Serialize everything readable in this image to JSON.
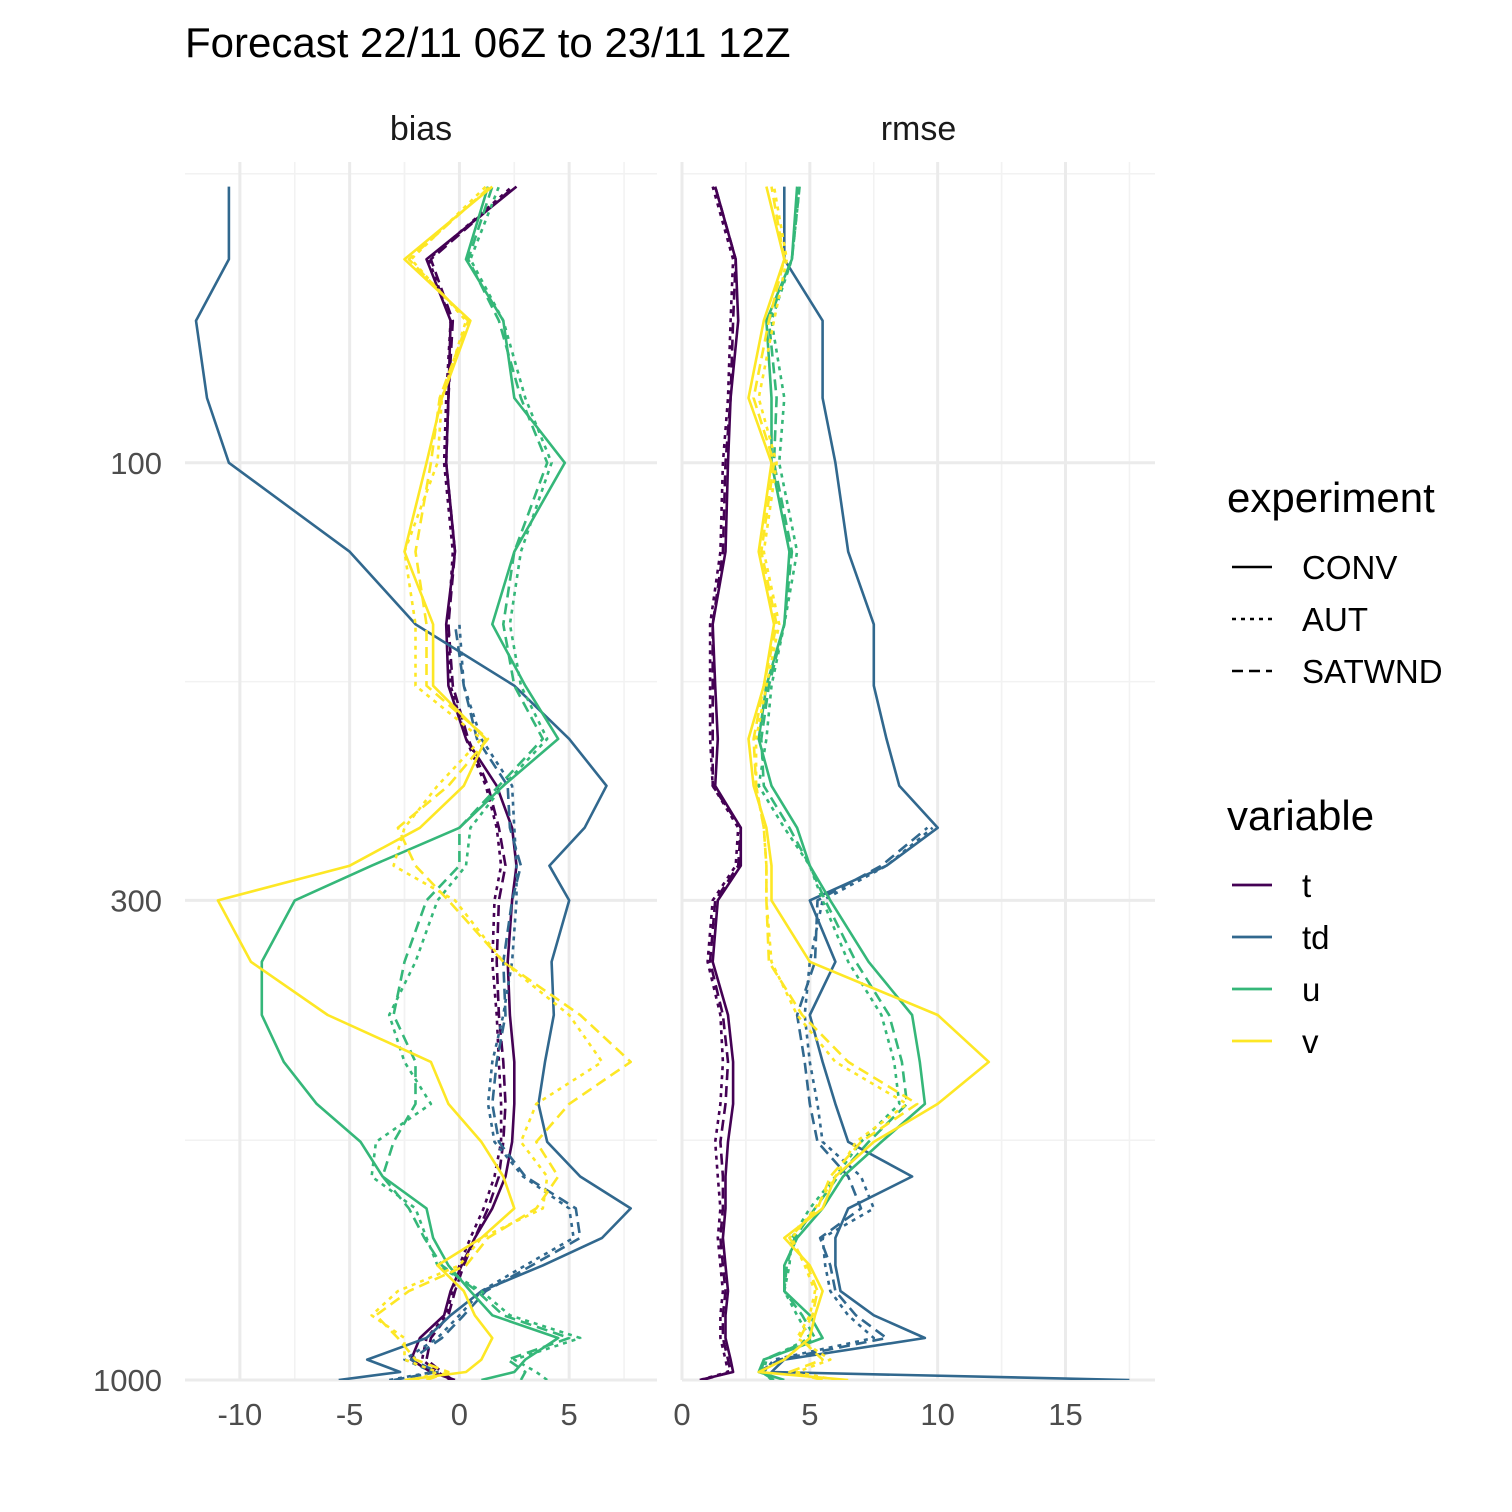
{
  "chart_data": {
    "type": "line",
    "title": "Forecast 22/11 06Z to 23/11 12Z",
    "facets": [
      {
        "name": "bias",
        "xlim": [
          -12.5,
          9
        ],
        "xticks": [
          -10,
          -5,
          0,
          5
        ],
        "xtick_labels": [
          "-10",
          "-5",
          "0",
          "5"
        ]
      },
      {
        "name": "rmse",
        "xlim": [
          0,
          18.5
        ],
        "xticks": [
          0,
          5,
          10,
          15
        ],
        "xtick_labels": [
          "0",
          "5",
          "10",
          "15"
        ]
      }
    ],
    "y_scale": "log",
    "y_reversed": true,
    "ylim": [
      1000,
      47
    ],
    "yticks": [
      100,
      300,
      1000
    ],
    "ytick_labels": [
      "100",
      "300",
      "1000"
    ],
    "legend_placement": "right",
    "grid": true,
    "legends": {
      "experiment": {
        "title": "experiment",
        "entries": [
          {
            "label": "CONV",
            "dash": "solid"
          },
          {
            "label": "AUT",
            "dash": "dotted"
          },
          {
            "label": "SATWND",
            "dash": "dashed"
          }
        ]
      },
      "variable": {
        "title": "variable",
        "entries": [
          {
            "label": "t",
            "color": "#440154"
          },
          {
            "label": "td",
            "color": "#31688e"
          },
          {
            "label": "u",
            "color": "#35b779"
          },
          {
            "label": "v",
            "color": "#fde725"
          }
        ]
      }
    },
    "pressure_levels": [
      1000,
      980,
      950,
      900,
      850,
      800,
      750,
      700,
      650,
      600,
      550,
      500,
      450,
      400,
      350,
      300,
      275,
      250,
      225,
      200,
      175,
      150,
      125,
      100,
      85,
      70,
      60,
      50
    ],
    "series": [
      {
        "facet": "bias",
        "variable": "t",
        "experiment": "CONV",
        "values": [
          -0.2,
          -1.3,
          -2.2,
          -1.8,
          -0.7,
          -0.4,
          0.1,
          0.7,
          1.5,
          2.1,
          2.4,
          2.5,
          2.5,
          2.3,
          2.2,
          2.4,
          2.6,
          2.4,
          1.7,
          0.3,
          -0.5,
          -0.6,
          -0.2,
          -0.6,
          -0.5,
          -0.4,
          -1.5,
          2.6
        ]
      },
      {
        "facet": "bias",
        "variable": "t",
        "experiment": "AUT",
        "values": [
          -0.4,
          -1.0,
          -1.7,
          -1.5,
          -0.6,
          -0.3,
          0.0,
          0.5,
          1.1,
          1.6,
          1.9,
          1.9,
          1.8,
          1.7,
          1.5,
          1.6,
          1.9,
          1.7,
          1.2,
          0.3,
          -0.4,
          -0.5,
          -0.3,
          -0.7,
          -0.6,
          -0.4,
          -1.4,
          2.4
        ]
      },
      {
        "facet": "bias",
        "variable": "t",
        "experiment": "SATWND",
        "values": [
          -0.3,
          -0.8,
          -1.5,
          -1.3,
          -0.5,
          -0.2,
          0.2,
          0.7,
          1.3,
          1.8,
          2.0,
          2.1,
          2.0,
          1.8,
          1.7,
          1.8,
          2.1,
          1.8,
          1.3,
          0.4,
          -0.3,
          -0.5,
          -0.2,
          -0.6,
          -0.5,
          -0.3,
          -1.3,
          2.5
        ]
      },
      {
        "facet": "bias",
        "variable": "td",
        "experiment": "CONV",
        "values": [
          -5.5,
          -2.7,
          -4.2,
          -1.5,
          -0.4,
          1.0,
          3.8,
          6.5,
          7.8,
          5.5,
          4.0,
          3.6,
          3.9,
          4.3,
          4.2,
          5.0,
          4.1,
          5.7,
          6.7,
          5.0,
          2.5,
          -2.0,
          -5.0,
          -10.5,
          -11.5,
          -12.0,
          -10.5,
          -10.5
        ]
      },
      {
        "facet": "bias",
        "variable": "td",
        "experiment": "AUT",
        "values": [
          -3.2,
          -1.2,
          -2.5,
          -1.0,
          0.0,
          1.0,
          3.0,
          5.2,
          5.0,
          2.9,
          1.6,
          1.3,
          1.5,
          2.0,
          2.4,
          2.6,
          2.6,
          2.5,
          2.4,
          1.0,
          0.2,
          0.0,
          null,
          null,
          null,
          null,
          null,
          null
        ]
      },
      {
        "facet": "bias",
        "variable": "td",
        "experiment": "SATWND",
        "values": [
          -3.0,
          -1.0,
          -2.2,
          -0.8,
          0.2,
          1.2,
          3.3,
          5.5,
          5.3,
          3.0,
          1.8,
          1.5,
          1.7,
          2.1,
          2.0,
          2.4,
          2.8,
          2.3,
          2.2,
          0.8,
          0.2,
          -0.2,
          null,
          null,
          null,
          null,
          null,
          null
        ]
      },
      {
        "facet": "bias",
        "variable": "u",
        "experiment": "CONV",
        "values": [
          1.0,
          2.5,
          3.0,
          4.5,
          1.5,
          0.5,
          -0.5,
          -1.2,
          -1.5,
          -3.5,
          -4.5,
          -6.5,
          -8.0,
          -9.0,
          -9.0,
          -7.5,
          -4.0,
          0.0,
          2.0,
          4.5,
          3.0,
          1.5,
          2.5,
          4.8,
          2.5,
          2.0,
          0.3,
          1.3
        ]
      },
      {
        "facet": "bias",
        "variable": "u",
        "experiment": "AUT",
        "values": [
          4.0,
          3.5,
          2.5,
          5.5,
          2.3,
          1.0,
          -1.0,
          -1.5,
          -2.0,
          -4.0,
          -3.8,
          -1.3,
          -2.5,
          -3.2,
          -2.0,
          -1.0,
          0.3,
          0.5,
          2.0,
          4.0,
          2.8,
          2.3,
          2.8,
          4.2,
          3.0,
          2.0,
          0.5,
          1.8
        ]
      },
      {
        "facet": "bias",
        "variable": "u",
        "experiment": "SATWND",
        "values": [
          2.8,
          3.0,
          2.2,
          5.0,
          2.0,
          0.8,
          -0.8,
          -1.6,
          -2.3,
          -3.5,
          -3.0,
          -2.0,
          -2.0,
          -3.0,
          -2.5,
          -1.5,
          0.0,
          0.0,
          1.8,
          3.8,
          2.5,
          2.0,
          2.5,
          4.0,
          2.8,
          1.8,
          0.4,
          1.5
        ]
      },
      {
        "facet": "bias",
        "variable": "v",
        "experiment": "CONV",
        "values": [
          -2.5,
          0.3,
          1.0,
          1.5,
          0.7,
          0.2,
          -1.0,
          1.0,
          2.5,
          2.0,
          1.0,
          -0.5,
          -1.3,
          -6.0,
          -9.5,
          -11.0,
          -5.0,
          -1.8,
          0.2,
          1.2,
          -1.2,
          -1.2,
          -2.5,
          -1.5,
          -0.8,
          0.5,
          -2.5,
          1.5
        ]
      },
      {
        "facet": "bias",
        "variable": "v",
        "experiment": "AUT",
        "values": [
          -2.0,
          -1.0,
          -2.5,
          -2.5,
          -4.0,
          -2.8,
          0.0,
          1.0,
          3.8,
          4.0,
          2.8,
          3.5,
          6.5,
          5.0,
          2.0,
          -0.2,
          -3.0,
          -2.5,
          -1.0,
          1.0,
          -2.0,
          -2.0,
          -2.5,
          -1.0,
          -0.8,
          0.3,
          -2.2,
          1.2
        ]
      },
      {
        "facet": "bias",
        "variable": "v",
        "experiment": "SATWND",
        "values": [
          -1.5,
          -0.5,
          -2.0,
          -2.8,
          -3.8,
          -2.3,
          0.3,
          1.3,
          3.5,
          4.5,
          3.5,
          5.0,
          7.8,
          5.5,
          2.0,
          -0.5,
          -2.0,
          -2.8,
          -0.5,
          1.3,
          -1.5,
          -1.5,
          -2.0,
          -1.3,
          -0.9,
          0.4,
          -2.3,
          1.4
        ]
      },
      {
        "facet": "rmse",
        "variable": "t",
        "experiment": "CONV",
        "values": [
          0.7,
          2.0,
          1.9,
          1.7,
          1.7,
          1.8,
          1.7,
          1.6,
          1.7,
          1.7,
          1.8,
          2.0,
          2.0,
          1.8,
          1.2,
          1.4,
          2.3,
          2.3,
          1.3,
          1.4,
          1.3,
          1.2,
          1.7,
          1.8,
          1.9,
          2.2,
          2.1,
          1.3
        ]
      },
      {
        "facet": "rmse",
        "variable": "t",
        "experiment": "AUT",
        "values": [
          0.7,
          1.8,
          1.7,
          1.5,
          1.5,
          1.6,
          1.5,
          1.4,
          1.5,
          1.4,
          1.3,
          1.5,
          1.6,
          1.5,
          1.0,
          1.2,
          2.1,
          2.2,
          1.2,
          1.1,
          1.1,
          1.1,
          1.5,
          1.6,
          1.8,
          1.9,
          2.0,
          1.2
        ]
      },
      {
        "facet": "rmse",
        "variable": "t",
        "experiment": "SATWND",
        "values": [
          0.8,
          1.9,
          1.8,
          1.6,
          1.6,
          1.7,
          1.6,
          1.5,
          1.6,
          1.6,
          1.5,
          1.7,
          1.8,
          1.6,
          1.1,
          1.3,
          2.2,
          2.3,
          1.2,
          1.2,
          1.2,
          1.2,
          1.6,
          1.7,
          1.9,
          2.0,
          2.1,
          1.3
        ]
      },
      {
        "facet": "rmse",
        "variable": "td",
        "experiment": "CONV",
        "values": [
          17.5,
          3.5,
          4.0,
          9.5,
          7.5,
          6.2,
          6.0,
          6.0,
          6.5,
          9.0,
          6.5,
          6.0,
          5.5,
          5.0,
          6.0,
          5.0,
          8.0,
          10.0,
          8.5,
          8.0,
          7.5,
          7.5,
          6.5,
          6.0,
          5.5,
          5.5,
          4.0,
          4.0
        ]
      },
      {
        "facet": "rmse",
        "variable": "td",
        "experiment": "AUT",
        "values": [
          null,
          3.2,
          3.6,
          7.5,
          6.5,
          5.8,
          5.6,
          5.5,
          7.5,
          7.0,
          5.5,
          5.3,
          5.0,
          4.8,
          5.0,
          5.5,
          8.0,
          9.8,
          null,
          null,
          null,
          null,
          null,
          null,
          null,
          null,
          null,
          null
        ]
      },
      {
        "facet": "rmse",
        "variable": "td",
        "experiment": "SATWND",
        "values": [
          null,
          3.0,
          3.8,
          8.0,
          6.8,
          6.0,
          5.8,
          5.4,
          7.0,
          6.5,
          5.3,
          5.0,
          4.8,
          4.5,
          5.2,
          5.3,
          7.8,
          9.6,
          null,
          null,
          null,
          null,
          null,
          null,
          null,
          null,
          null,
          null
        ]
      },
      {
        "facet": "rmse",
        "variable": "u",
        "experiment": "CONV",
        "values": [
          4.0,
          3.0,
          3.2,
          5.5,
          5.0,
          4.0,
          4.0,
          4.5,
          5.5,
          6.3,
          7.8,
          9.5,
          9.3,
          9.0,
          7.3,
          5.8,
          5.0,
          4.5,
          3.5,
          3.0,
          3.3,
          4.0,
          4.2,
          3.5,
          3.5,
          3.3,
          4.3,
          4.5
        ]
      },
      {
        "facet": "rmse",
        "variable": "u",
        "experiment": "AUT",
        "values": [
          3.5,
          3.2,
          3.3,
          5.0,
          4.5,
          4.0,
          4.2,
          4.3,
          5.0,
          6.0,
          7.0,
          8.5,
          8.3,
          7.8,
          6.5,
          5.5,
          5.0,
          4.0,
          3.0,
          3.3,
          3.5,
          4.0,
          4.5,
          3.8,
          4.0,
          3.5,
          4.3,
          4.6
        ]
      },
      {
        "facet": "rmse",
        "variable": "u",
        "experiment": "SATWND",
        "values": [
          3.6,
          3.1,
          3.2,
          5.2,
          4.7,
          4.0,
          4.1,
          4.4,
          5.2,
          6.1,
          7.3,
          8.8,
          8.6,
          8.1,
          6.8,
          5.6,
          5.0,
          4.2,
          3.2,
          3.1,
          3.4,
          4.0,
          4.3,
          3.6,
          3.7,
          3.4,
          4.3,
          4.6
        ]
      },
      {
        "facet": "rmse",
        "variable": "v",
        "experiment": "CONV",
        "values": [
          6.5,
          3.0,
          4.0,
          5.0,
          5.2,
          5.5,
          5.0,
          4.0,
          5.5,
          6.0,
          7.5,
          10.0,
          12.0,
          10.0,
          5.0,
          3.5,
          3.5,
          3.3,
          2.8,
          2.6,
          3.2,
          3.6,
          3.0,
          3.5,
          2.6,
          3.2,
          4.0,
          3.3
        ]
      },
      {
        "facet": "rmse",
        "variable": "v",
        "experiment": "AUT",
        "values": [
          6.0,
          4.5,
          5.8,
          4.5,
          5.0,
          5.2,
          4.8,
          4.3,
          5.2,
          6.0,
          6.8,
          8.8,
          6.0,
          4.5,
          3.5,
          3.3,
          3.3,
          3.2,
          2.9,
          2.9,
          3.3,
          3.8,
          3.2,
          3.7,
          3.0,
          3.6,
          4.1,
          3.6
        ]
      },
      {
        "facet": "rmse",
        "variable": "v",
        "experiment": "SATWND",
        "values": [
          5.5,
          4.2,
          5.5,
          4.6,
          5.1,
          5.3,
          4.9,
          4.2,
          5.3,
          5.8,
          7.0,
          9.2,
          6.5,
          4.7,
          3.4,
          3.3,
          3.3,
          3.2,
          2.9,
          2.8,
          3.2,
          3.7,
          3.1,
          3.6,
          2.8,
          3.4,
          4.0,
          3.5
        ]
      }
    ]
  }
}
